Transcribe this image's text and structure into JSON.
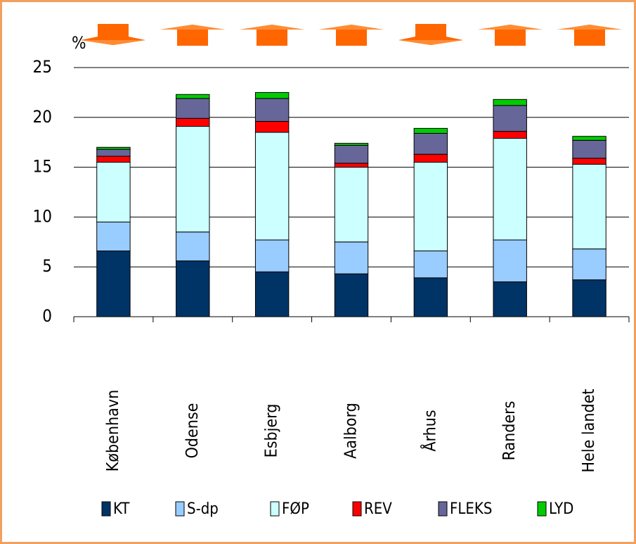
{
  "chart_data": {
    "type": "stacked-bar",
    "y_label": "%",
    "categories": [
      "København",
      "Odense",
      "Esbjerg",
      "Aalborg",
      "Århus",
      "Randers",
      "Hele landet"
    ],
    "series": [
      {
        "name": "KT",
        "color": "#003366",
        "values": [
          6.6,
          5.6,
          4.5,
          4.3,
          3.9,
          3.5,
          3.7
        ]
      },
      {
        "name": "S-dp",
        "color": "#99ccff",
        "values": [
          2.9,
          2.9,
          3.2,
          3.2,
          2.7,
          4.2,
          3.1
        ]
      },
      {
        "name": "FØP",
        "color": "#ccffff",
        "values": [
          6.0,
          10.6,
          10.8,
          7.5,
          8.9,
          10.2,
          8.5
        ]
      },
      {
        "name": "REV",
        "color": "#ff0000",
        "values": [
          0.6,
          0.8,
          1.1,
          0.4,
          0.8,
          0.7,
          0.6
        ]
      },
      {
        "name": "FLEKS",
        "color": "#666699",
        "values": [
          0.7,
          2.0,
          2.3,
          1.8,
          2.1,
          2.6,
          1.8
        ]
      },
      {
        "name": "LYD",
        "color": "#00cc00",
        "values": [
          0.2,
          0.4,
          0.6,
          0.2,
          0.5,
          0.6,
          0.4
        ]
      }
    ],
    "ylim": [
      0,
      25
    ],
    "yticks": [
      0,
      5,
      10,
      15,
      20,
      25
    ],
    "grid": true
  }
}
